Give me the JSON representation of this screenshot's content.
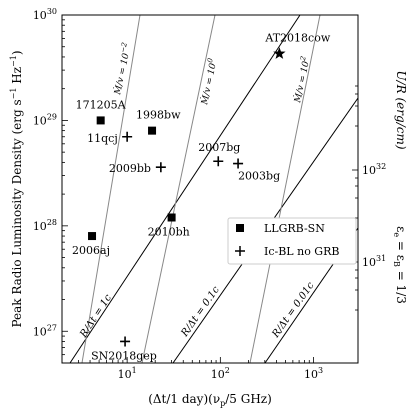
{
  "chart_data": {
    "type": "scatter",
    "x_scale": "log",
    "y_scale": "log",
    "xlim": [
      2,
      3000
    ],
    "ylim": [
      5e+26,
      1e+30
    ],
    "xlabel_parts": [
      "(Δt/1 day)(ν",
      "p",
      "/5 GHz)"
    ],
    "ylabel_parts": [
      "Peak Radio Luminosity Density (erg s",
      "−1",
      " Hz",
      "−1",
      ")"
    ],
    "y2label_parts": [
      "U/R (erg/cm)"
    ],
    "y2label_right": "ε",
    "y2label_equation": "ε",
    "y2_equation_parts": [
      "ε",
      "e",
      " = ε",
      "B",
      " = 1/3"
    ],
    "x_ticks": [
      {
        "value": 10,
        "base": "10",
        "exp": "1"
      },
      {
        "value": 100,
        "base": "10",
        "exp": "2"
      },
      {
        "value": 1000,
        "base": "10",
        "exp": "3"
      }
    ],
    "y_ticks": [
      {
        "value": 1e+27,
        "base": "10",
        "exp": "27"
      },
      {
        "value": 1e+28,
        "base": "10",
        "exp": "28"
      },
      {
        "value": 1e+29,
        "base": "10",
        "exp": "29"
      },
      {
        "value": 1e+30,
        "base": "10",
        "exp": "30"
      }
    ],
    "y2_ticks": [
      {
        "value": 1e+31,
        "base": "10",
        "exp": "31"
      },
      {
        "value": 1e+32,
        "base": "10",
        "exp": "32"
      }
    ],
    "series": [
      {
        "name": "LLGRB-SN",
        "marker": "square",
        "points": [
          {
            "label": "171205A",
            "x": 5.2,
            "y": 1e+29
          },
          {
            "label": "1998bw",
            "x": 18.5,
            "y": 8e+28
          },
          {
            "label": "2006aj",
            "x": 4.2,
            "y": 8e+27
          },
          {
            "label": "2010bh",
            "x": 30,
            "y": 1.2e+28
          }
        ]
      },
      {
        "name": "Ic-BL no GRB",
        "marker": "plus",
        "points": [
          {
            "label": "11qcj",
            "x": 10,
            "y": 7e+28
          },
          {
            "label": "2009bb",
            "x": 23,
            "y": 3.6e+28
          },
          {
            "label": "2007bg",
            "x": 95,
            "y": 4.1e+28
          },
          {
            "label": "2003bg",
            "x": 155,
            "y": 3.9e+28
          },
          {
            "label": "SN2018gep",
            "x": 9.5,
            "y": 8e+26
          }
        ]
      },
      {
        "name": "AT2018cow",
        "marker": "star",
        "points": [
          {
            "label": "AT2018cow",
            "x": 430,
            "y": 4.3e+29
          }
        ]
      }
    ],
    "velocity_lines": [
      {
        "label_parts": [
          "R/Δt = 1c"
        ],
        "gray": false
      },
      {
        "label_parts": [
          "R/Δt = 0.1c"
        ],
        "gray": false
      },
      {
        "label_parts": [
          "R/Δt = 0.01c"
        ],
        "gray": false
      }
    ],
    "mass_loss_lines": [
      {
        "label_parts": [
          "Ṁ/v = 10",
          "−2"
        ],
        "gray": true
      },
      {
        "label_parts": [
          "Ṁ/v = 10",
          "0"
        ],
        "gray": true
      },
      {
        "label_parts": [
          "Ṁ/v = 10",
          "2"
        ],
        "gray": true
      }
    ],
    "legend_position": "center-right",
    "grid": false
  }
}
